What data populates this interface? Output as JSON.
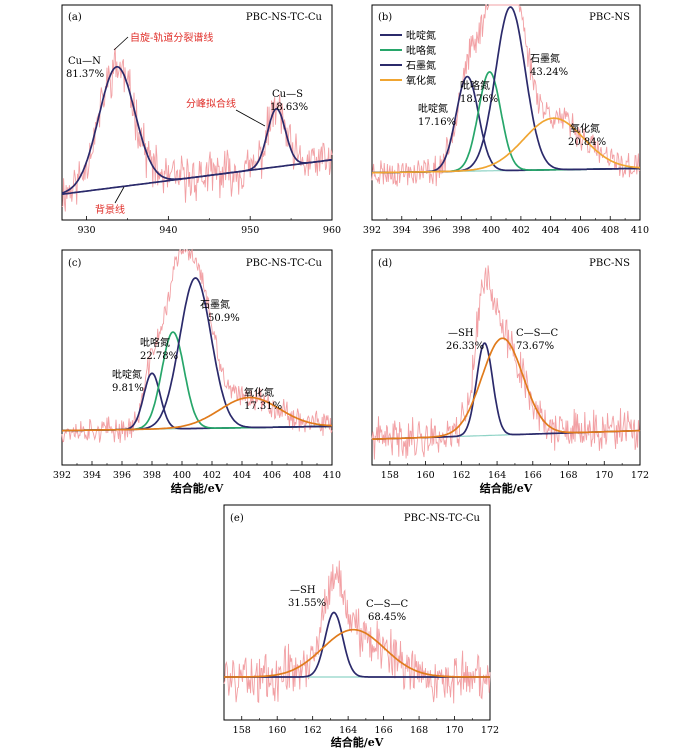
{
  "colors": {
    "raw": "#f2a0a4",
    "fit_envelope": "#f4b4b6",
    "background": "#8fd3c6",
    "dark": "#2b2a6b",
    "green": "#27a66a",
    "orange": "#e07b1b",
    "gold": "#f0a531",
    "red_text": "#e0302b"
  },
  "chart_data": [
    {
      "id": "a",
      "type": "line",
      "panel_label": "(a)",
      "title": "PBC-NS-TC-Cu",
      "xlabel": "",
      "xlim": [
        927,
        960
      ],
      "xticks": [
        930,
        940,
        950,
        960
      ],
      "ylim": [
        0,
        1
      ],
      "background": {
        "x": [
          927,
          960
        ],
        "y": [
          0.12,
          0.28
        ]
      },
      "peaks": [
        {
          "name": "Cu—N",
          "center": 933.7,
          "height": 0.56,
          "width": 2.2,
          "pct": "81.37%"
        },
        {
          "name": "Cu—S",
          "center": 953.2,
          "height": 0.27,
          "width": 1.1,
          "pct": "18.63%"
        }
      ],
      "annotations": [
        {
          "text": "自旋-轨道分裂谱线",
          "color": "red"
        },
        {
          "text": "分峰拟合线",
          "color": "red"
        },
        {
          "text": "背景线",
          "color": "red"
        }
      ],
      "labels": [
        {
          "text": "Cu—N"
        },
        {
          "text": "81.37%"
        },
        {
          "text": "Cu—S"
        },
        {
          "text": "18.63%"
        }
      ]
    },
    {
      "id": "b",
      "type": "line",
      "panel_label": "(b)",
      "title": "PBC-NS",
      "xlabel": "",
      "xlim": [
        392,
        410
      ],
      "xticks": [
        392,
        394,
        396,
        398,
        400,
        402,
        404,
        406,
        408,
        410
      ],
      "ylim": [
        0,
        1
      ],
      "background": {
        "x": [
          392,
          410
        ],
        "y": [
          0.22,
          0.24
        ]
      },
      "peaks": [
        {
          "name": "吡啶氮",
          "center": 398.4,
          "height": 0.44,
          "width": 0.75,
          "pct": "17.16%",
          "color": "dark"
        },
        {
          "name": "吡咯氮",
          "center": 399.9,
          "height": 0.46,
          "width": 0.75,
          "pct": "18.76%",
          "color": "green"
        },
        {
          "name": "石墨氮",
          "center": 401.3,
          "height": 0.76,
          "width": 1.0,
          "pct": "43.24%",
          "color": "dark"
        },
        {
          "name": "氧化氮",
          "center": 404.2,
          "height": 0.24,
          "width": 2.0,
          "pct": "20.84%",
          "color": "gold"
        }
      ],
      "legend": [
        {
          "label": "吡啶氮",
          "color": "dark"
        },
        {
          "label": "吡咯氮",
          "color": "green"
        },
        {
          "label": "石墨氮",
          "color": "dark"
        },
        {
          "label": "氧化氮",
          "color": "gold"
        }
      ],
      "legend_position": "top-left"
    },
    {
      "id": "c",
      "type": "line",
      "panel_label": "(c)",
      "title": "PBC-NS-TC-Cu",
      "xlabel": "结合能/eV",
      "xlim": [
        392,
        410
      ],
      "xticks": [
        392,
        394,
        396,
        398,
        400,
        402,
        404,
        406,
        408,
        410
      ],
      "ylim": [
        0,
        1
      ],
      "background": {
        "x": [
          392,
          410
        ],
        "y": [
          0.16,
          0.18
        ]
      },
      "peaks": [
        {
          "name": "吡啶氮",
          "center": 398.0,
          "height": 0.26,
          "width": 0.55,
          "pct": "9.81%",
          "color": "dark"
        },
        {
          "name": "吡咯氮",
          "center": 399.4,
          "height": 0.45,
          "width": 0.75,
          "pct": "22.78%",
          "color": "green"
        },
        {
          "name": "石墨氮",
          "center": 400.9,
          "height": 0.7,
          "width": 1.05,
          "pct": "50.9%",
          "color": "dark"
        },
        {
          "name": "氧化氮",
          "center": 404.5,
          "height": 0.14,
          "width": 2.0,
          "pct": "17.31%",
          "color": "orange"
        }
      ]
    },
    {
      "id": "d",
      "type": "line",
      "panel_label": "(d)",
      "title": "PBC-NS",
      "xlabel": "结合能/eV",
      "xlim": [
        157,
        172
      ],
      "xticks": [
        158,
        160,
        162,
        164,
        166,
        168,
        170,
        172
      ],
      "ylim": [
        0,
        1
      ],
      "background": {
        "x": [
          157,
          172
        ],
        "y": [
          0.12,
          0.16
        ]
      },
      "peaks": [
        {
          "name": "—SH",
          "center": 163.3,
          "height": 0.43,
          "width": 0.45,
          "pct": "26.33%",
          "color": "dark"
        },
        {
          "name": "C—S—C",
          "center": 164.3,
          "height": 0.45,
          "width": 1.15,
          "pct": "73.67%",
          "color": "orange"
        }
      ]
    },
    {
      "id": "e",
      "type": "line",
      "panel_label": "(e)",
      "title": "PBC-NS-TC-Cu",
      "xlabel": "结合能/eV",
      "xlim": [
        157,
        172
      ],
      "xticks": [
        158,
        160,
        162,
        164,
        166,
        168,
        170,
        172
      ],
      "ylim": [
        0,
        1
      ],
      "background": {
        "x": [
          157,
          172
        ],
        "y": [
          0.2,
          0.2
        ]
      },
      "peaks": [
        {
          "name": "—SH",
          "center": 163.2,
          "height": 0.3,
          "width": 0.5,
          "pct": "31.55%",
          "color": "dark"
        },
        {
          "name": "C—S—C",
          "center": 164.3,
          "height": 0.22,
          "width": 1.75,
          "pct": "68.45%",
          "color": "orange"
        }
      ]
    }
  ]
}
